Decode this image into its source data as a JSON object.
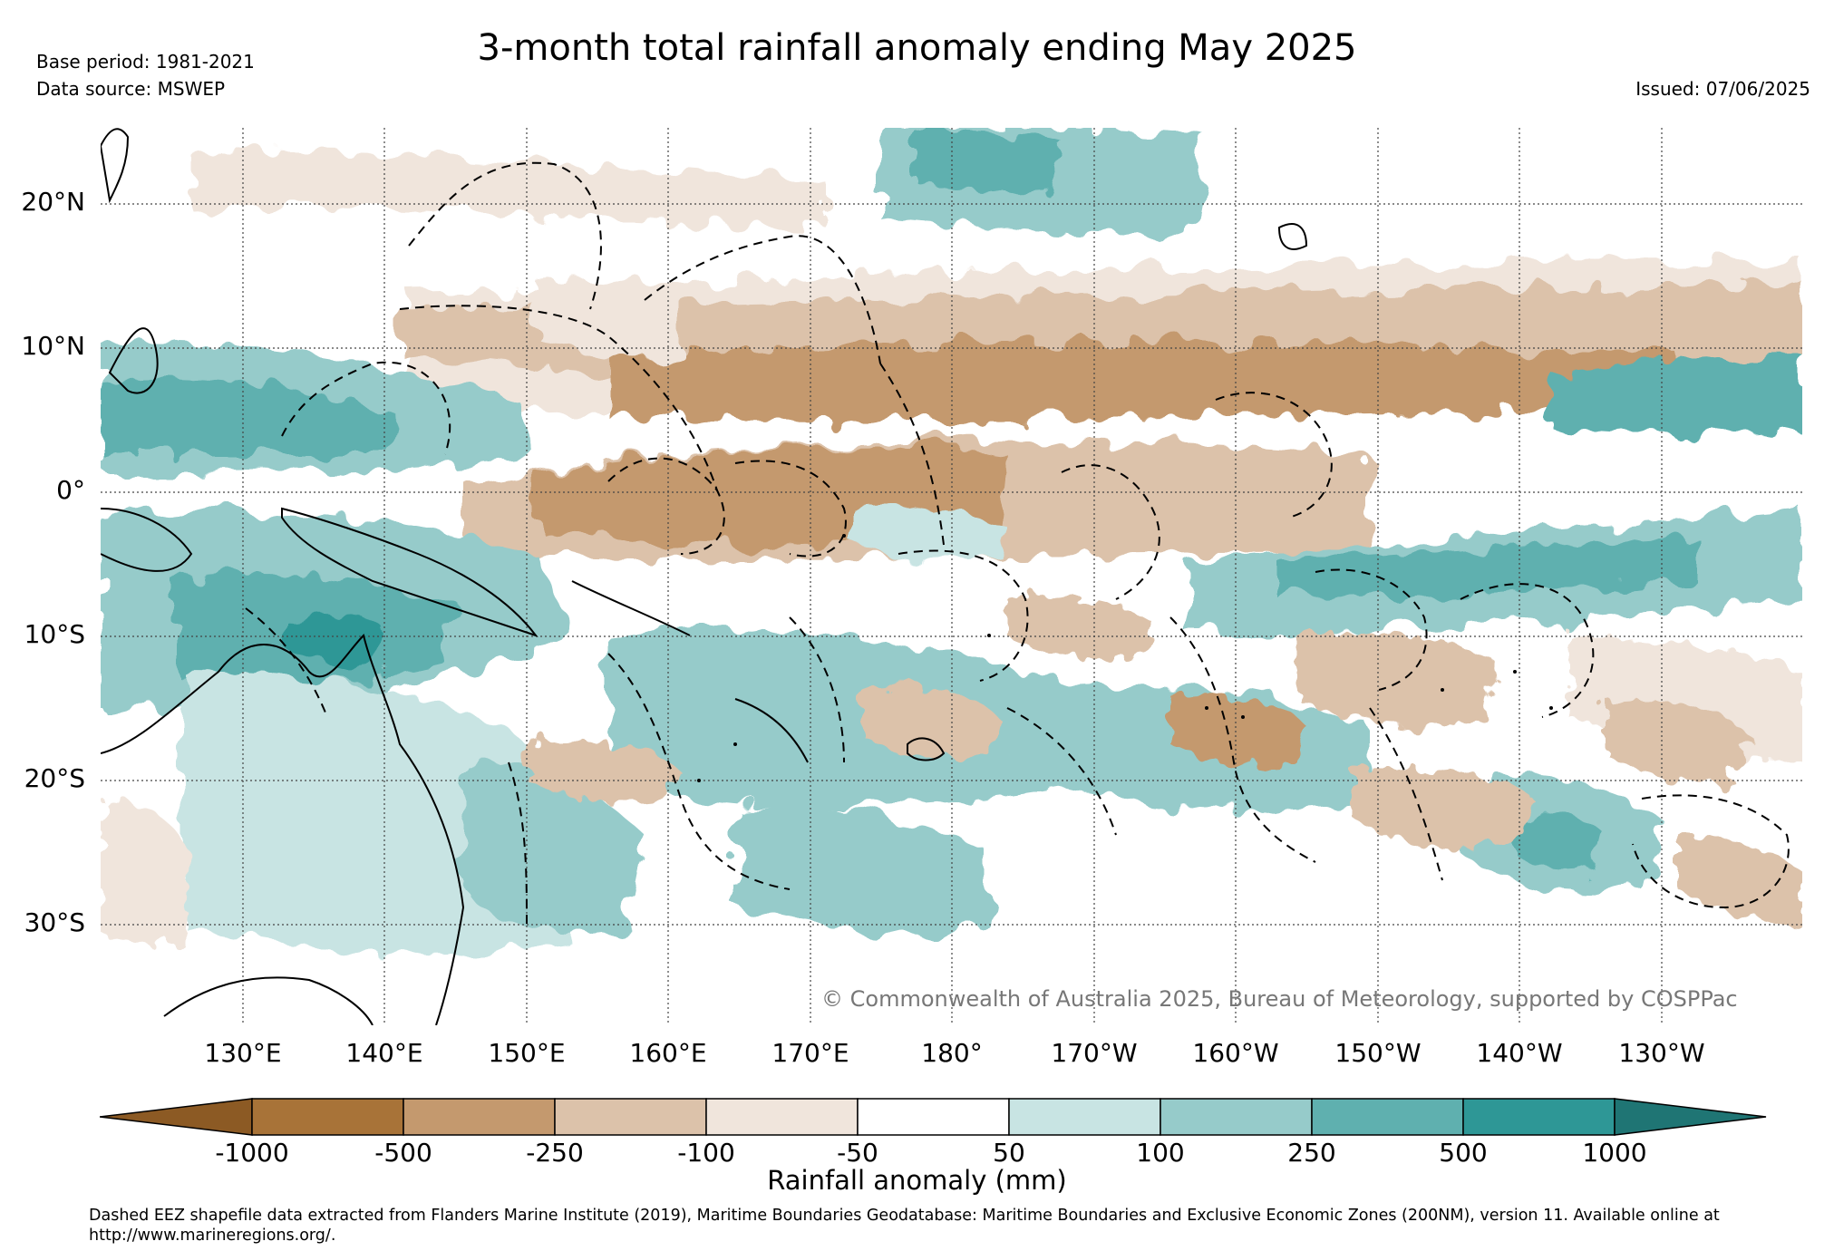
{
  "title": "3-month total rainfall anomaly ending May 2025",
  "meta": {
    "base_period": "Base period: 1981-2021",
    "data_source": "Data source: MSWEP",
    "issued": "Issued: 07/06/2025"
  },
  "map": {
    "lat_labels": [
      "20°N",
      "10°N",
      "0°",
      "10°S",
      "20°S",
      "30°S"
    ],
    "lon_labels": [
      "130°E",
      "140°E",
      "150°E",
      "160°E",
      "170°E",
      "180°",
      "170°W",
      "160°W",
      "150°W",
      "140°W",
      "130°W"
    ],
    "copyright": "© Commonwealth of Australia 2025, Bureau of Meteorology, supported by COSPPac"
  },
  "colorbar": {
    "title": "Rainfall anomaly (mm)",
    "ticks": [
      "-1000",
      "-500",
      "-250",
      "-100",
      "-50",
      "50",
      "100",
      "250",
      "500",
      "1000"
    ],
    "colors": [
      "#8c5a24",
      "#a87338",
      "#c4996e",
      "#dcc2aa",
      "#f0e5dc",
      "#ffffff",
      "#c8e4e3",
      "#96cbca",
      "#5fb0af",
      "#2e9796",
      "#1f7574"
    ]
  },
  "footnote": "Dashed EEZ shapefile data extracted from Flanders Marine Institute (2019), Maritime Boundaries Geodatabase: Maritime Boundaries and Exclusive Economic Zones (200NM), version 11. Available online at http://www.marineregions.org/."
}
